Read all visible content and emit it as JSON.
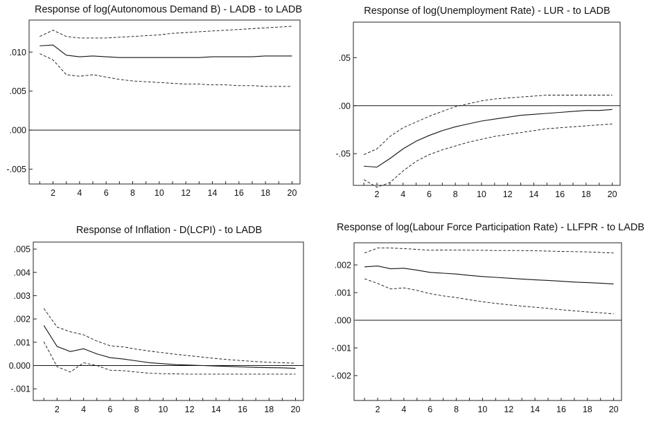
{
  "chart_data": [
    {
      "type": "line",
      "title": "Response of log(Autonomous Demand B) - LADB - to LADB",
      "x": [
        1,
        2,
        3,
        4,
        5,
        6,
        7,
        8,
        9,
        10,
        11,
        12,
        13,
        14,
        15,
        16,
        17,
        18,
        19,
        20
      ],
      "xticks": [
        2,
        4,
        6,
        8,
        10,
        12,
        14,
        16,
        18,
        20
      ],
      "yticks": [
        0.01,
        0.005,
        0.0,
        -0.005
      ],
      "ytick_labels": [
        ".010",
        ".005",
        ".000",
        "-.005"
      ],
      "ylim": [
        -0.0069,
        0.0141
      ],
      "xlim": [
        0.2,
        20.6
      ],
      "zero_line": true,
      "series": [
        {
          "style": "solid",
          "values": [
            0.0108,
            0.0109,
            0.0096,
            0.0094,
            0.0095,
            0.0094,
            0.0093,
            0.0093,
            0.0093,
            0.0093,
            0.0093,
            0.0093,
            0.0093,
            0.0094,
            0.0094,
            0.0094,
            0.0094,
            0.0095,
            0.0095,
            0.0095
          ]
        },
        {
          "style": "dashed",
          "values": [
            0.012,
            0.0128,
            0.012,
            0.0118,
            0.0118,
            0.0118,
            0.0119,
            0.012,
            0.0121,
            0.0122,
            0.0124,
            0.0125,
            0.0126,
            0.0127,
            0.0128,
            0.0129,
            0.013,
            0.0131,
            0.0132,
            0.0133
          ]
        },
        {
          "style": "dashed",
          "values": [
            0.0098,
            0.009,
            0.0071,
            0.0069,
            0.0071,
            0.0068,
            0.0065,
            0.0063,
            0.0062,
            0.0061,
            0.006,
            0.0059,
            0.0059,
            0.0058,
            0.0058,
            0.0057,
            0.0057,
            0.0056,
            0.0056,
            0.0056
          ]
        }
      ]
    },
    {
      "type": "line",
      "title": "Response of log(Unemployment Rate) - LUR - to LADB",
      "x": [
        1,
        2,
        3,
        4,
        5,
        6,
        7,
        8,
        9,
        10,
        11,
        12,
        13,
        14,
        15,
        16,
        17,
        18,
        19,
        20
      ],
      "xticks": [
        2,
        4,
        6,
        8,
        10,
        12,
        14,
        16,
        18,
        20
      ],
      "yticks": [
        0.05,
        0.0,
        -0.05
      ],
      "ytick_labels": [
        ".05",
        ".00",
        "-.05"
      ],
      "ylim": [
        -0.083,
        0.087
      ],
      "xlim": [
        0.2,
        20.6
      ],
      "zero_line": true,
      "series": [
        {
          "style": "solid",
          "values": [
            -0.063,
            -0.064,
            -0.055,
            -0.045,
            -0.037,
            -0.031,
            -0.026,
            -0.022,
            -0.019,
            -0.016,
            -0.014,
            -0.012,
            -0.01,
            -0.009,
            -0.008,
            -0.007,
            -0.006,
            -0.005,
            -0.005,
            -0.004
          ]
        },
        {
          "style": "dashed",
          "values": [
            -0.051,
            -0.045,
            -0.032,
            -0.023,
            -0.017,
            -0.011,
            -0.006,
            -0.001,
            0.002,
            0.005,
            0.007,
            0.008,
            0.009,
            0.01,
            0.011,
            0.011,
            0.011,
            0.011,
            0.011,
            0.011
          ]
        },
        {
          "style": "dashed",
          "values": [
            -0.077,
            -0.085,
            -0.08,
            -0.068,
            -0.058,
            -0.051,
            -0.046,
            -0.042,
            -0.038,
            -0.035,
            -0.032,
            -0.03,
            -0.028,
            -0.026,
            -0.024,
            -0.023,
            -0.022,
            -0.021,
            -0.02,
            -0.019
          ]
        }
      ]
    },
    {
      "type": "line",
      "title": "Response of Inflation - D(LCPI) - to LADB",
      "x": [
        1,
        2,
        3,
        4,
        5,
        6,
        7,
        8,
        9,
        10,
        11,
        12,
        13,
        14,
        15,
        16,
        17,
        18,
        19,
        20
      ],
      "xticks": [
        2,
        4,
        6,
        8,
        10,
        12,
        14,
        16,
        18,
        20
      ],
      "yticks": [
        0.005,
        0.004,
        0.003,
        0.002,
        0.001,
        0.0,
        -0.001
      ],
      "ytick_labels": [
        ".005",
        ".004",
        ".003",
        ".002",
        ".001",
        "0.000",
        "-.001"
      ],
      "ylim": [
        -0.0015,
        0.0053
      ],
      "xlim": [
        0.2,
        20.6
      ],
      "zero_line": true,
      "series": [
        {
          "style": "solid",
          "values": [
            0.00172,
            0.00082,
            0.0006,
            0.00072,
            0.0005,
            0.00034,
            0.00028,
            0.0002,
            0.00012,
            8e-05,
            4e-05,
            2e-05,
            0.0,
            -2e-05,
            -4e-05,
            -6e-05,
            -8e-05,
            -9e-05,
            -0.0001,
            -0.00012
          ]
        },
        {
          "style": "dashed",
          "values": [
            0.00245,
            0.00165,
            0.00145,
            0.00132,
            0.00105,
            0.00085,
            0.0008,
            0.0007,
            0.00062,
            0.00055,
            0.00048,
            0.00042,
            0.00036,
            0.0003,
            0.00025,
            0.00021,
            0.00017,
            0.00014,
            0.00012,
            0.0001
          ]
        },
        {
          "style": "dashed",
          "values": [
            0.00102,
            -5e-05,
            -0.00028,
            0.00012,
            0.0,
            -0.0002,
            -0.00022,
            -0.00028,
            -0.00033,
            -0.00035,
            -0.00036,
            -0.00037,
            -0.00037,
            -0.00037,
            -0.00037,
            -0.00037,
            -0.00037,
            -0.00037,
            -0.00037,
            -0.00037
          ]
        }
      ]
    },
    {
      "type": "line",
      "title": "Response of log(Labour Force Participation Rate) - LLFPR - to LADB",
      "x": [
        1,
        2,
        3,
        4,
        5,
        6,
        7,
        8,
        9,
        10,
        11,
        12,
        13,
        14,
        15,
        16,
        17,
        18,
        19,
        20
      ],
      "xticks": [
        2,
        4,
        6,
        8,
        10,
        12,
        14,
        16,
        18,
        20
      ],
      "yticks": [
        0.002,
        0.001,
        0.0,
        -0.001,
        -0.002
      ],
      "ytick_labels": [
        ".002",
        ".001",
        ".000",
        "-.001",
        "-.002"
      ],
      "ylim": [
        -0.0029,
        0.0028
      ],
      "xlim": [
        0.2,
        20.6
      ],
      "zero_line": true,
      "series": [
        {
          "style": "solid",
          "values": [
            0.00193,
            0.00196,
            0.00186,
            0.00188,
            0.00181,
            0.00173,
            0.0017,
            0.00167,
            0.00162,
            0.00158,
            0.00155,
            0.00152,
            0.00149,
            0.00146,
            0.00144,
            0.00141,
            0.00138,
            0.00136,
            0.00134,
            0.00131
          ]
        },
        {
          "style": "dashed",
          "values": [
            0.00243,
            0.00261,
            0.00261,
            0.00259,
            0.00256,
            0.00253,
            0.00254,
            0.00254,
            0.00253,
            0.00253,
            0.00252,
            0.00252,
            0.00252,
            0.00251,
            0.0025,
            0.00249,
            0.00248,
            0.00247,
            0.00245,
            0.00243
          ]
        },
        {
          "style": "dashed",
          "values": [
            0.0015,
            0.00133,
            0.00113,
            0.00117,
            0.00108,
            0.00096,
            0.00088,
            0.00082,
            0.00074,
            0.00067,
            0.00061,
            0.00056,
            0.00051,
            0.00047,
            0.00043,
            0.00038,
            0.00034,
            0.0003,
            0.00027,
            0.00023
          ]
        }
      ]
    }
  ]
}
